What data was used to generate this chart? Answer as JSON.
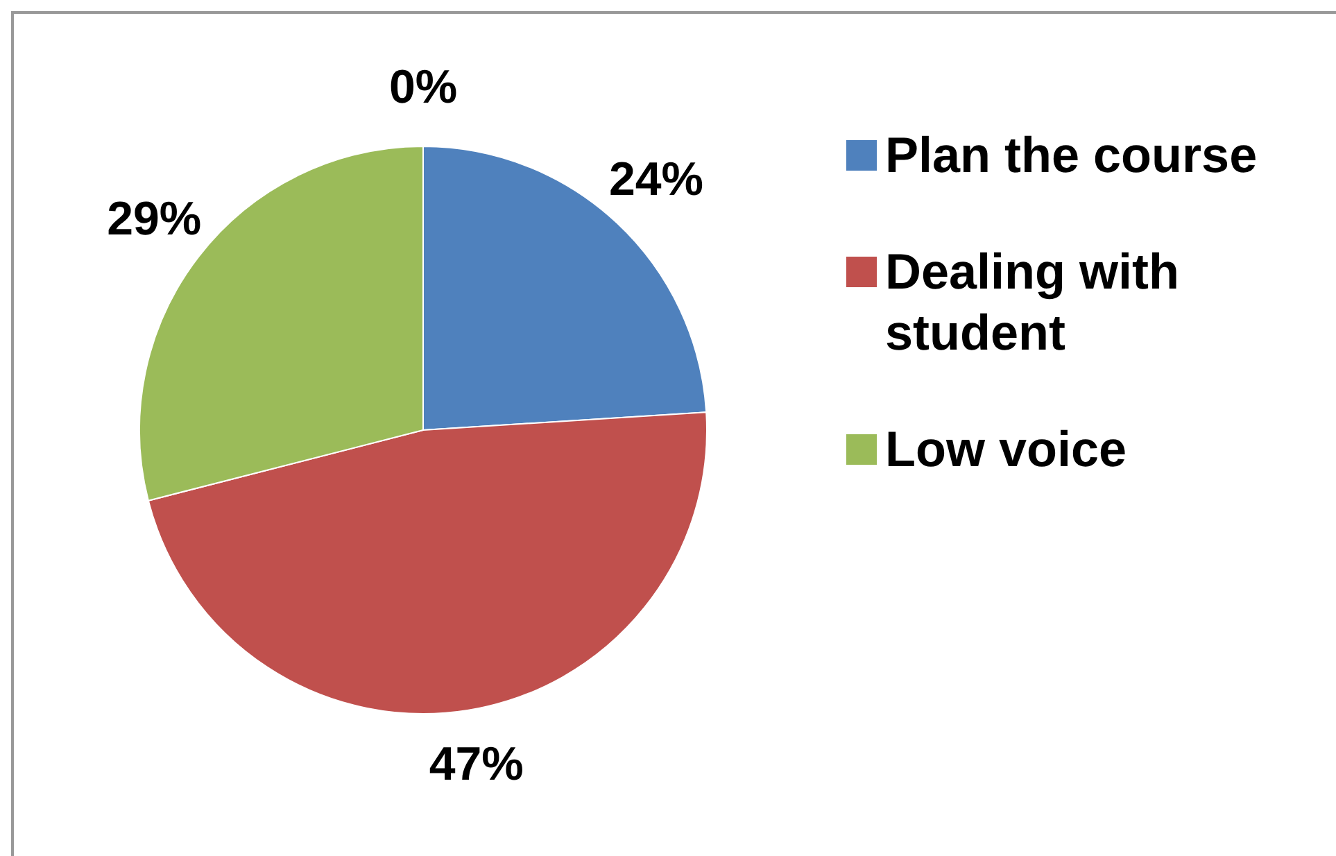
{
  "chart_data": {
    "type": "pie",
    "categories": [
      "Plan the course",
      "Dealing with student",
      "Low voice",
      null
    ],
    "values": [
      24,
      47,
      29,
      0
    ],
    "colors": [
      "#4f81bd",
      "#c0504d",
      "#9bbb59",
      "#8064a2"
    ],
    "value_labels": [
      "24%",
      "47%",
      "29%",
      "0%"
    ],
    "legend": "right"
  }
}
